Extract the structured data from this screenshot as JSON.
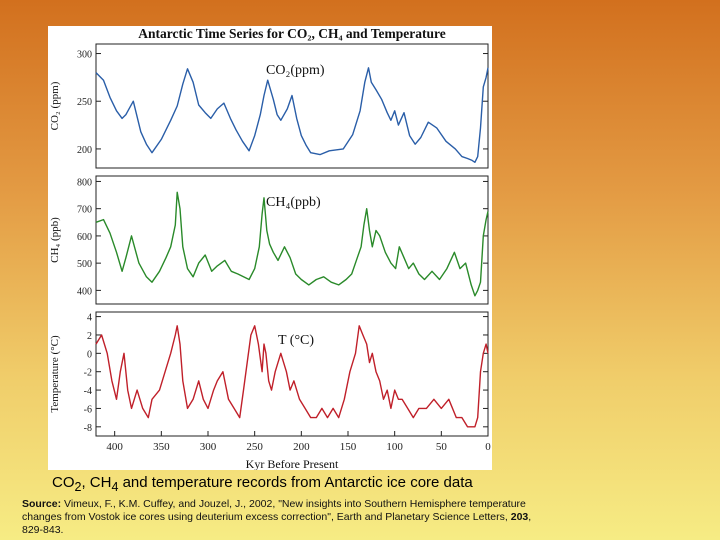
{
  "figure": {
    "title": "Antarctic Time Series for CO₂, CH₄ and Temperature",
    "xlabel": "Kyr Before Present",
    "xticks": [
      400,
      350,
      300,
      250,
      200,
      150,
      100,
      50,
      0
    ],
    "colors": {
      "co2": "#2a5ea8",
      "ch4": "#2a8a2a",
      "temp": "#c0202a"
    }
  },
  "chart_data": [
    {
      "type": "line",
      "title": "CO₂(ppm)",
      "ylabel": "CO₂ (ppm)",
      "yticks": [
        200,
        250,
        300
      ],
      "ylim": [
        180,
        310
      ],
      "xlim": [
        420,
        0
      ],
      "series": [
        {
          "name": "",
          "x": [
            420,
            412,
            405,
            398,
            392,
            388,
            380,
            372,
            366,
            360,
            350,
            340,
            333,
            327,
            322,
            316,
            310,
            303,
            297,
            290,
            283,
            276,
            270,
            263,
            256,
            250,
            244,
            240,
            236,
            230,
            226,
            222,
            215,
            210,
            205,
            200,
            195,
            190,
            180,
            170,
            155,
            145,
            137,
            132,
            128,
            125,
            120,
            114,
            108,
            104,
            100,
            96,
            90,
            84,
            78,
            72,
            64,
            55,
            45,
            35,
            28,
            22,
            17,
            14,
            11,
            8,
            5,
            2,
            0
          ],
          "values": [
            280,
            272,
            254,
            240,
            232,
            236,
            250,
            218,
            205,
            196,
            210,
            230,
            245,
            268,
            284,
            270,
            246,
            238,
            232,
            242,
            248,
            232,
            220,
            208,
            198,
            214,
            236,
            256,
            272,
            252,
            236,
            230,
            242,
            256,
            232,
            214,
            204,
            196,
            194,
            198,
            200,
            215,
            240,
            270,
            285,
            270,
            262,
            252,
            238,
            230,
            240,
            225,
            238,
            214,
            205,
            212,
            228,
            222,
            208,
            200,
            192,
            190,
            188,
            186,
            192,
            222,
            265,
            275,
            285
          ]
        }
      ]
    },
    {
      "type": "line",
      "title": "CH₄(ppb)",
      "ylabel": "CH₄ (ppb)",
      "yticks": [
        400,
        500,
        600,
        700,
        800
      ],
      "ylim": [
        350,
        820
      ],
      "xlim": [
        420,
        0
      ],
      "series": [
        {
          "name": "",
          "x": [
            420,
            412,
            405,
            398,
            392,
            388,
            382,
            374,
            366,
            360,
            352,
            345,
            340,
            335,
            333,
            330,
            327,
            322,
            316,
            310,
            303,
            296,
            290,
            282,
            275,
            268,
            262,
            256,
            250,
            245,
            242,
            240,
            237,
            234,
            230,
            225,
            218,
            212,
            206,
            200,
            192,
            184,
            176,
            168,
            160,
            152,
            146,
            140,
            136,
            133,
            130,
            127,
            124,
            120,
            116,
            110,
            104,
            99,
            95,
            90,
            85,
            80,
            74,
            68,
            60,
            52,
            44,
            36,
            30,
            24,
            18,
            14,
            11,
            8,
            5,
            2,
            0
          ],
          "values": [
            650,
            660,
            610,
            540,
            470,
            520,
            600,
            500,
            450,
            430,
            470,
            520,
            560,
            640,
            760,
            700,
            560,
            480,
            450,
            500,
            530,
            470,
            490,
            510,
            470,
            460,
            450,
            440,
            480,
            560,
            680,
            740,
            620,
            570,
            540,
            510,
            560,
            520,
            460,
            440,
            420,
            440,
            450,
            430,
            420,
            440,
            460,
            520,
            560,
            640,
            700,
            620,
            560,
            620,
            600,
            540,
            500,
            480,
            560,
            520,
            480,
            500,
            460,
            440,
            470,
            440,
            480,
            540,
            480,
            500,
            420,
            380,
            400,
            430,
            600,
            660,
            690
          ]
        }
      ]
    },
    {
      "type": "line",
      "title": "T (°C)",
      "ylabel": "Temperature (°C)",
      "yticks": [
        -8,
        -6,
        -4,
        -2,
        0,
        2,
        4
      ],
      "ylim": [
        -9,
        4.5
      ],
      "xlim": [
        420,
        0
      ],
      "series": [
        {
          "name": "",
          "x": [
            420,
            414,
            408,
            403,
            398,
            394,
            390,
            386,
            382,
            376,
            370,
            364,
            360,
            352,
            346,
            340,
            335,
            333,
            330,
            327,
            322,
            316,
            310,
            305,
            300,
            294,
            290,
            284,
            278,
            272,
            266,
            262,
            258,
            254,
            250,
            246,
            242,
            240,
            238,
            235,
            232,
            228,
            222,
            216,
            212,
            208,
            202,
            196,
            190,
            184,
            178,
            172,
            166,
            160,
            154,
            148,
            142,
            138,
            134,
            130,
            127,
            124,
            120,
            116,
            112,
            108,
            104,
            100,
            96,
            92,
            86,
            80,
            74,
            66,
            58,
            50,
            42,
            34,
            28,
            22,
            18,
            14,
            11,
            8,
            5,
            2,
            0
          ],
          "values": [
            1,
            2,
            0,
            -3,
            -5,
            -2,
            0,
            -4,
            -6,
            -4,
            -6,
            -7,
            -5,
            -4,
            -2,
            0,
            2,
            3,
            1,
            -3,
            -6,
            -5,
            -3,
            -5,
            -6,
            -4,
            -3,
            -2,
            -5,
            -6,
            -7,
            -4,
            -1,
            2,
            3,
            1,
            -2,
            1,
            0,
            -3,
            -4,
            -2,
            0,
            -2,
            -4,
            -3,
            -5,
            -6,
            -7,
            -7,
            -6,
            -7,
            -6,
            -7,
            -5,
            -2,
            0,
            3,
            2,
            1,
            -1,
            0,
            -2,
            -3,
            -5,
            -4,
            -6,
            -4,
            -5,
            -5,
            -6,
            -7,
            -6,
            -6,
            -5,
            -6,
            -5,
            -7,
            -7,
            -8,
            -8,
            -8,
            -7,
            -2,
            0,
            1,
            0
          ]
        }
      ]
    }
  ],
  "caption": {
    "main": "CO",
    "sub1": "2",
    "mid": ", CH",
    "sub2": "4",
    "rest": " and temperature records from Antarctic ice core data"
  },
  "source": {
    "label": "Source:",
    "text1": " Vimeux, F., K.M. Cuffey, and Jouzel, J., 2002, \"New insights into Southern Hemisphere temperature changes from Vostok ice cores using deuterium excess correction\", Earth and Planetary Science Letters, ",
    "volume": "203",
    "text2": ", 829-843."
  }
}
